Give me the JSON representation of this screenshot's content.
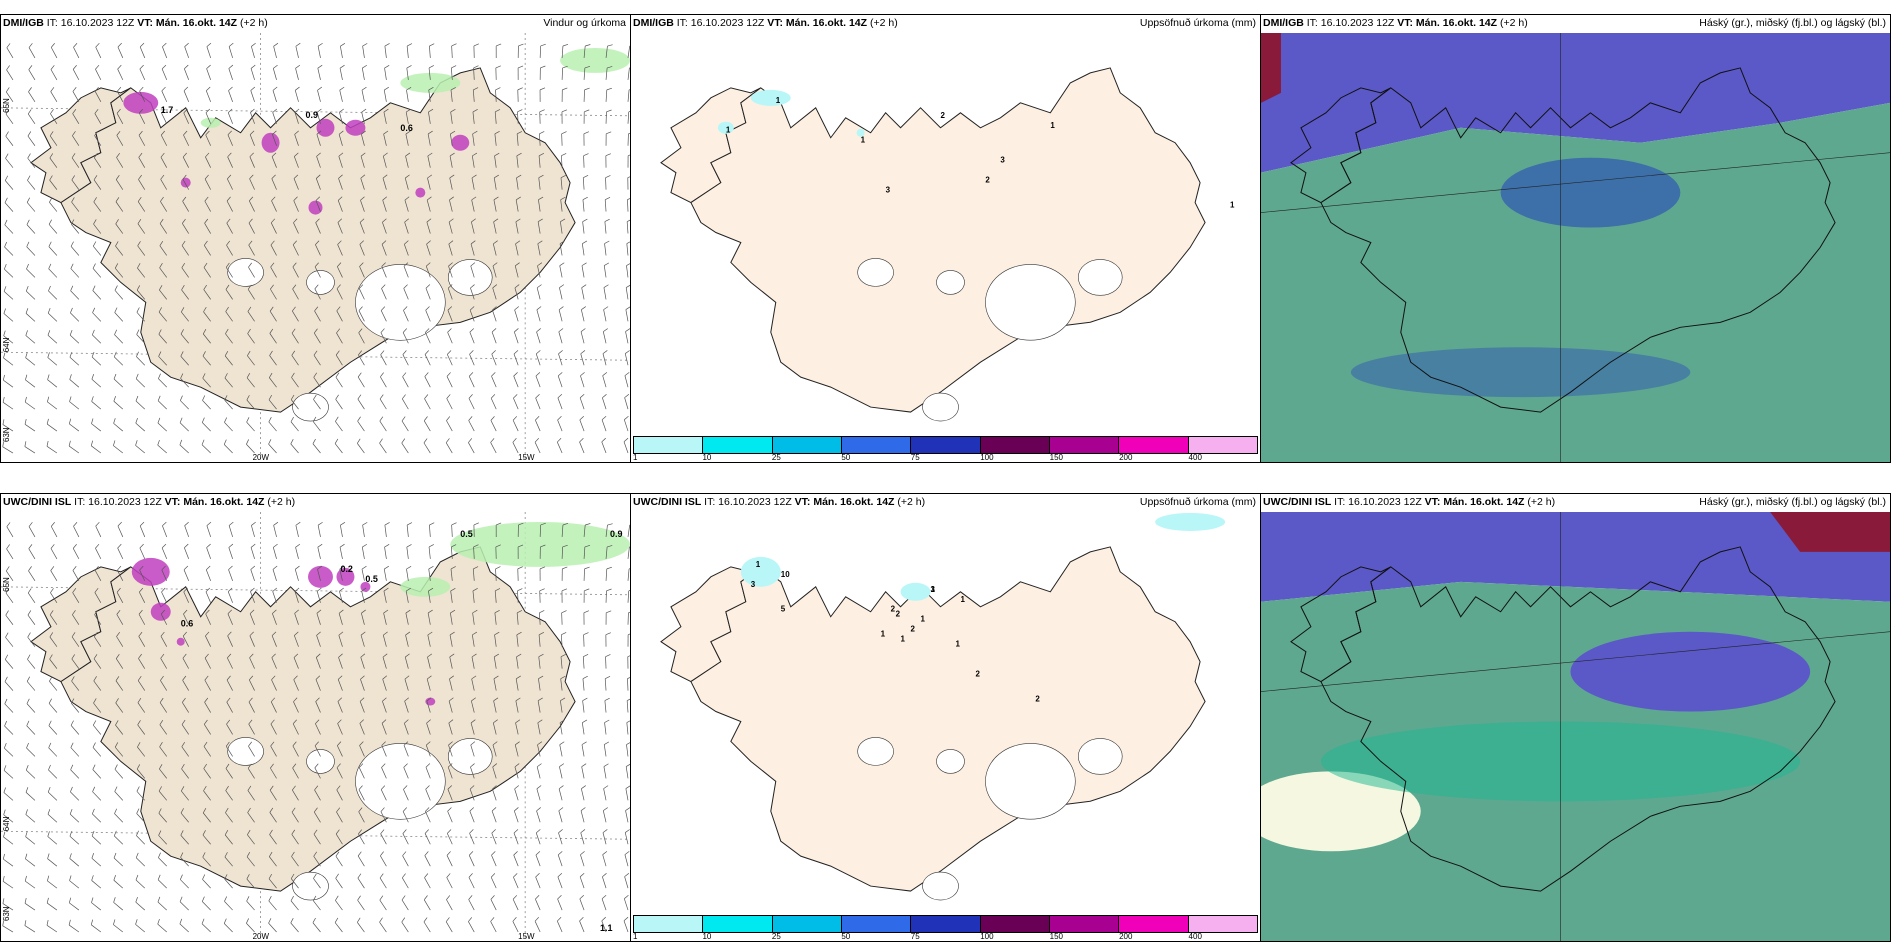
{
  "rows": [
    {
      "id": "dmi",
      "source": "DMI/IGB",
      "it": "IT: 16.10.2023 12Z",
      "vt": "VT: Mán. 16.okt. 14Z",
      "lead": "(+2 h)",
      "titles": [
        "Vindur og úrkoma",
        "Uppsöfnuð úrkoma (mm)",
        "Háský (gr.), miðský (fj.bl.) og lágský (bl.)"
      ],
      "precip_labels": [
        "1",
        "1",
        "1",
        "1",
        "2",
        "2",
        "3",
        "3",
        "1"
      ],
      "wind_labels": [
        "0.9",
        "1.7",
        "0.6"
      ]
    },
    {
      "id": "uwc",
      "source": "UWC/DINI ISL",
      "it": "IT: 16.10.2023 12Z",
      "vt": "VT: Mán. 16.okt. 14Z",
      "lead": "(+2 h)",
      "titles": [
        "",
        "Uppsöfnuð úrkoma (mm)",
        "Háský (gr.), miðský (fj.bl.) og lágský (bl.)"
      ],
      "precip_labels": [
        "1",
        "10",
        "3",
        "5",
        "2",
        "2",
        "1",
        "1",
        "2",
        "1",
        "1",
        "1",
        "1",
        "2",
        "3",
        "2"
      ],
      "wind_labels": [
        "0.5",
        "0.9",
        "0.2",
        "0.5",
        "0.6",
        "1.1"
      ]
    }
  ],
  "axes": {
    "lon_labels": [
      "20W",
      "15W"
    ],
    "lat_labels": [
      "65N",
      "64N",
      "63N"
    ]
  },
  "colorbar": {
    "ticks": [
      "1",
      "10",
      "25",
      "50",
      "75",
      "100",
      "150",
      "200",
      "400"
    ],
    "colors": [
      "#b8f6f8",
      "#00e8f0",
      "#00bde8",
      "#2f6be8",
      "#2033b8",
      "#6a0055",
      "#a80090",
      "#f000b8",
      "#f6b0f0"
    ]
  },
  "colors": {
    "land_wind": "#efe3d2",
    "land_precip": "#fdf0e2",
    "cloud_low": "#5ea890",
    "cloud_mid": "#3d6fa8",
    "cloud_high": "#5b58c8",
    "precip_magenta": "#c040c0",
    "precip_green": "#b8f0b0"
  }
}
